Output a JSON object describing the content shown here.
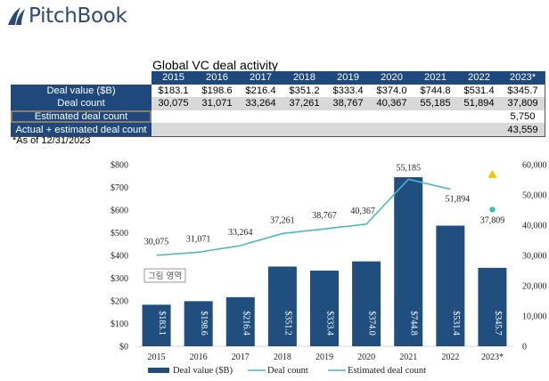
{
  "logo": {
    "text": "PitchBook",
    "icon": "pitchbook-sail-logo-icon"
  },
  "table": {
    "title": "Global VC deal activity",
    "years": [
      "2015",
      "2016",
      "2017",
      "2018",
      "2019",
      "2020",
      "2021",
      "2022",
      "2023*"
    ],
    "rows": [
      {
        "label": "Deal value ($B)",
        "values": [
          "$183.1",
          "$198.6",
          "$216.4",
          "$351.2",
          "$333.4",
          "$374.0",
          "$744.8",
          "$531.4",
          "$345.7"
        ]
      },
      {
        "label": "Deal count",
        "values": [
          "30,075",
          "31,071",
          "33,264",
          "37,261",
          "38,767",
          "40,367",
          "55,185",
          "51,894",
          "37,809"
        ]
      },
      {
        "label": "Estimated deal count",
        "values": [
          "",
          "",
          "",
          "",
          "",
          "",
          "",
          "",
          "5,750"
        ]
      },
      {
        "label": "Actual + estimated deal count",
        "values": [
          "",
          "",
          "",
          "",
          "",
          "",
          "",
          "",
          "43,559"
        ]
      }
    ],
    "footnote": "*As of 12/31/2023"
  },
  "colors": {
    "bar": "#1f4e7f",
    "line": "#4bb8c4",
    "estimate_marker": "#f2c500",
    "header": "#1f497d"
  },
  "chart_data": {
    "type": "bar",
    "title": "",
    "categories": [
      "2015",
      "2016",
      "2017",
      "2018",
      "2019",
      "2020",
      "2021",
      "2022",
      "2023*"
    ],
    "series": [
      {
        "name": "Deal value ($B)",
        "type": "bar",
        "axis": "left",
        "values": [
          183.1,
          198.6,
          216.4,
          351.2,
          333.4,
          374.0,
          744.8,
          531.4,
          345.7
        ],
        "labels": [
          "$183.1",
          "$198.6",
          "$216.4",
          "$351.2",
          "$333.4",
          "$374.0",
          "$744.8",
          "$531.4",
          "$345.7"
        ]
      },
      {
        "name": "Deal count",
        "type": "line",
        "axis": "right",
        "values": [
          30075,
          31071,
          33264,
          37261,
          38767,
          40367,
          55185,
          51894,
          null
        ],
        "labels": [
          "30,075",
          "31,071",
          "33,264",
          "37,261",
          "38,767",
          "40,367",
          "55,185",
          "51,894",
          ""
        ]
      },
      {
        "name": "Estimated deal count",
        "type": "line",
        "axis": "right",
        "values": [
          null,
          null,
          null,
          null,
          null,
          null,
          null,
          null,
          37809
        ],
        "labels": [
          "",
          "",
          "",
          "",
          "",
          "",
          "",
          "",
          "37,809"
        ]
      },
      {
        "name": "Actual + estimated deal count",
        "type": "marker",
        "axis": "right",
        "values": [
          null,
          null,
          null,
          null,
          null,
          null,
          null,
          null,
          43559
        ]
      }
    ],
    "y_left": {
      "ticks": [
        "$0",
        "$100",
        "$200",
        "$300",
        "$400",
        "$500",
        "$600",
        "$700",
        "$800"
      ],
      "range": [
        0,
        800
      ]
    },
    "y_right": {
      "ticks": [
        "0",
        "10,000",
        "20,000",
        "30,000",
        "40,000",
        "50,000",
        "60,000"
      ],
      "range": [
        0,
        60000
      ]
    },
    "legend": {
      "position": "bottom",
      "entries": [
        "Deal value ($B)",
        "Deal count",
        "Estimated deal count"
      ]
    },
    "annotation": "그림 영역",
    "grid": false
  }
}
